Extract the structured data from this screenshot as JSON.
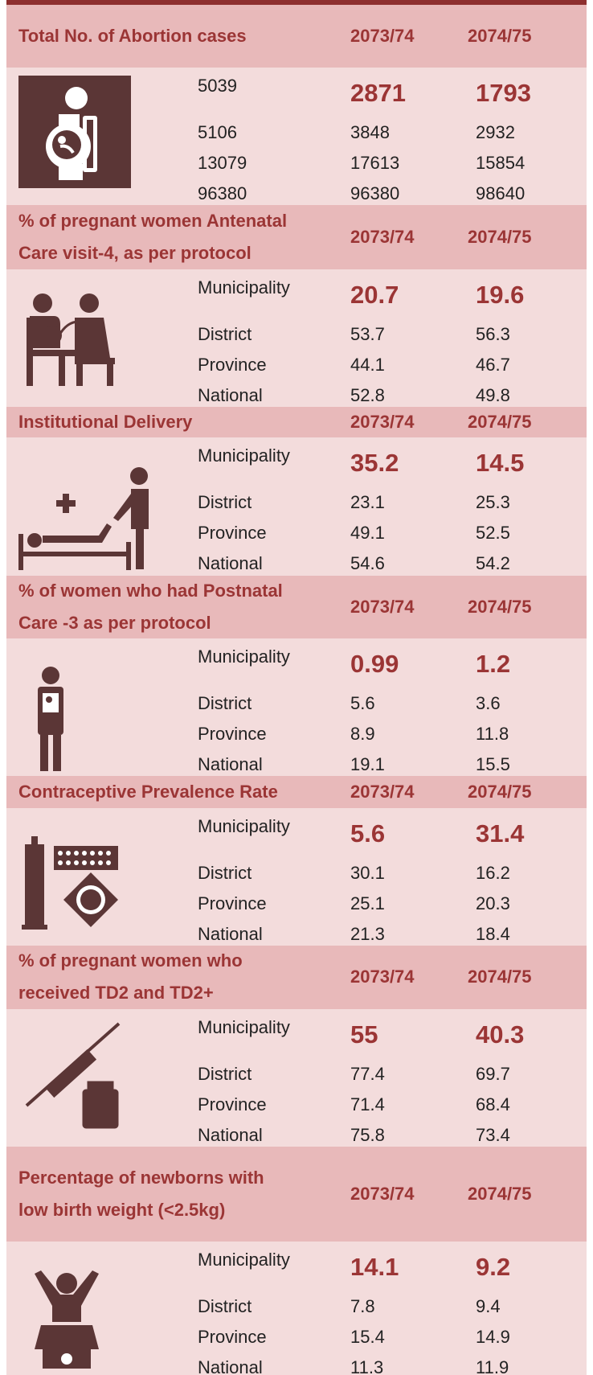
{
  "sections": [
    {
      "title": [
        "Total No. of Abortion cases"
      ],
      "columns": [
        "2073/74",
        "2074/75"
      ],
      "rows": [
        [
          5039,
          2871,
          1793
        ],
        [
          5106,
          3848,
          2932
        ],
        [
          13079,
          17613,
          15854
        ],
        [
          96380,
          96380,
          98640
        ]
      ]
    },
    {
      "title": [
        "% of pregnant women Antenatal",
        "Care visit-4, as per protocol"
      ],
      "columns": [
        "2073/74",
        "2074/75"
      ],
      "rows": [
        [
          "Municipality",
          20.7,
          19.6
        ],
        [
          "District",
          53.7,
          56.3
        ],
        [
          "Province",
          44.1,
          46.7
        ],
        [
          "National",
          52.8,
          49.8
        ]
      ]
    },
    {
      "title": [
        "Institutional Delivery"
      ],
      "columns": [
        "2073/74",
        "2074/75"
      ],
      "rows": [
        [
          "Municipality",
          35.2,
          14.5
        ],
        [
          "District",
          23.1,
          25.3
        ],
        [
          "Province",
          49.1,
          52.5
        ],
        [
          "National",
          54.6,
          54.2
        ]
      ]
    },
    {
      "title": [
        "% of women who had Postnatal",
        "Care -3 as per protocol"
      ],
      "columns": [
        "2073/74",
        "2074/75"
      ],
      "rows": [
        [
          "Municipality",
          0.99,
          1.2
        ],
        [
          "District",
          5.6,
          3.6
        ],
        [
          "Province",
          8.9,
          11.8
        ],
        [
          "National",
          19.1,
          15.5
        ]
      ]
    },
    {
      "title": [
        "Contraceptive Prevalence Rate"
      ],
      "columns": [
        "2073/74",
        "2074/75"
      ],
      "rows": [
        [
          "Municipality",
          5.6,
          31.4
        ],
        [
          "District",
          30.1,
          16.2
        ],
        [
          "Province",
          25.1,
          20.3
        ],
        [
          "National",
          21.3,
          18.4
        ]
      ]
    },
    {
      "title": [
        "% of pregnant women who",
        "received TD2 and TD2+"
      ],
      "columns": [
        "2073/74",
        "2074/75"
      ],
      "rows": [
        [
          "Municipality",
          55,
          40.3
        ],
        [
          "District",
          77.4,
          69.7
        ],
        [
          "Province",
          71.4,
          68.4
        ],
        [
          "National",
          75.8,
          73.4
        ]
      ]
    },
    {
      "title": [
        "Percentage of newborns with",
        "low birth weight (<2.5kg)"
      ],
      "columns": [
        "2073/74",
        "2074/75"
      ],
      "rows": [
        [
          "Municipality",
          14.1,
          9.2
        ],
        [
          "District",
          7.8,
          9.4
        ],
        [
          "Province",
          15.4,
          14.9
        ],
        [
          "National",
          11.3,
          11.9
        ]
      ]
    }
  ]
}
